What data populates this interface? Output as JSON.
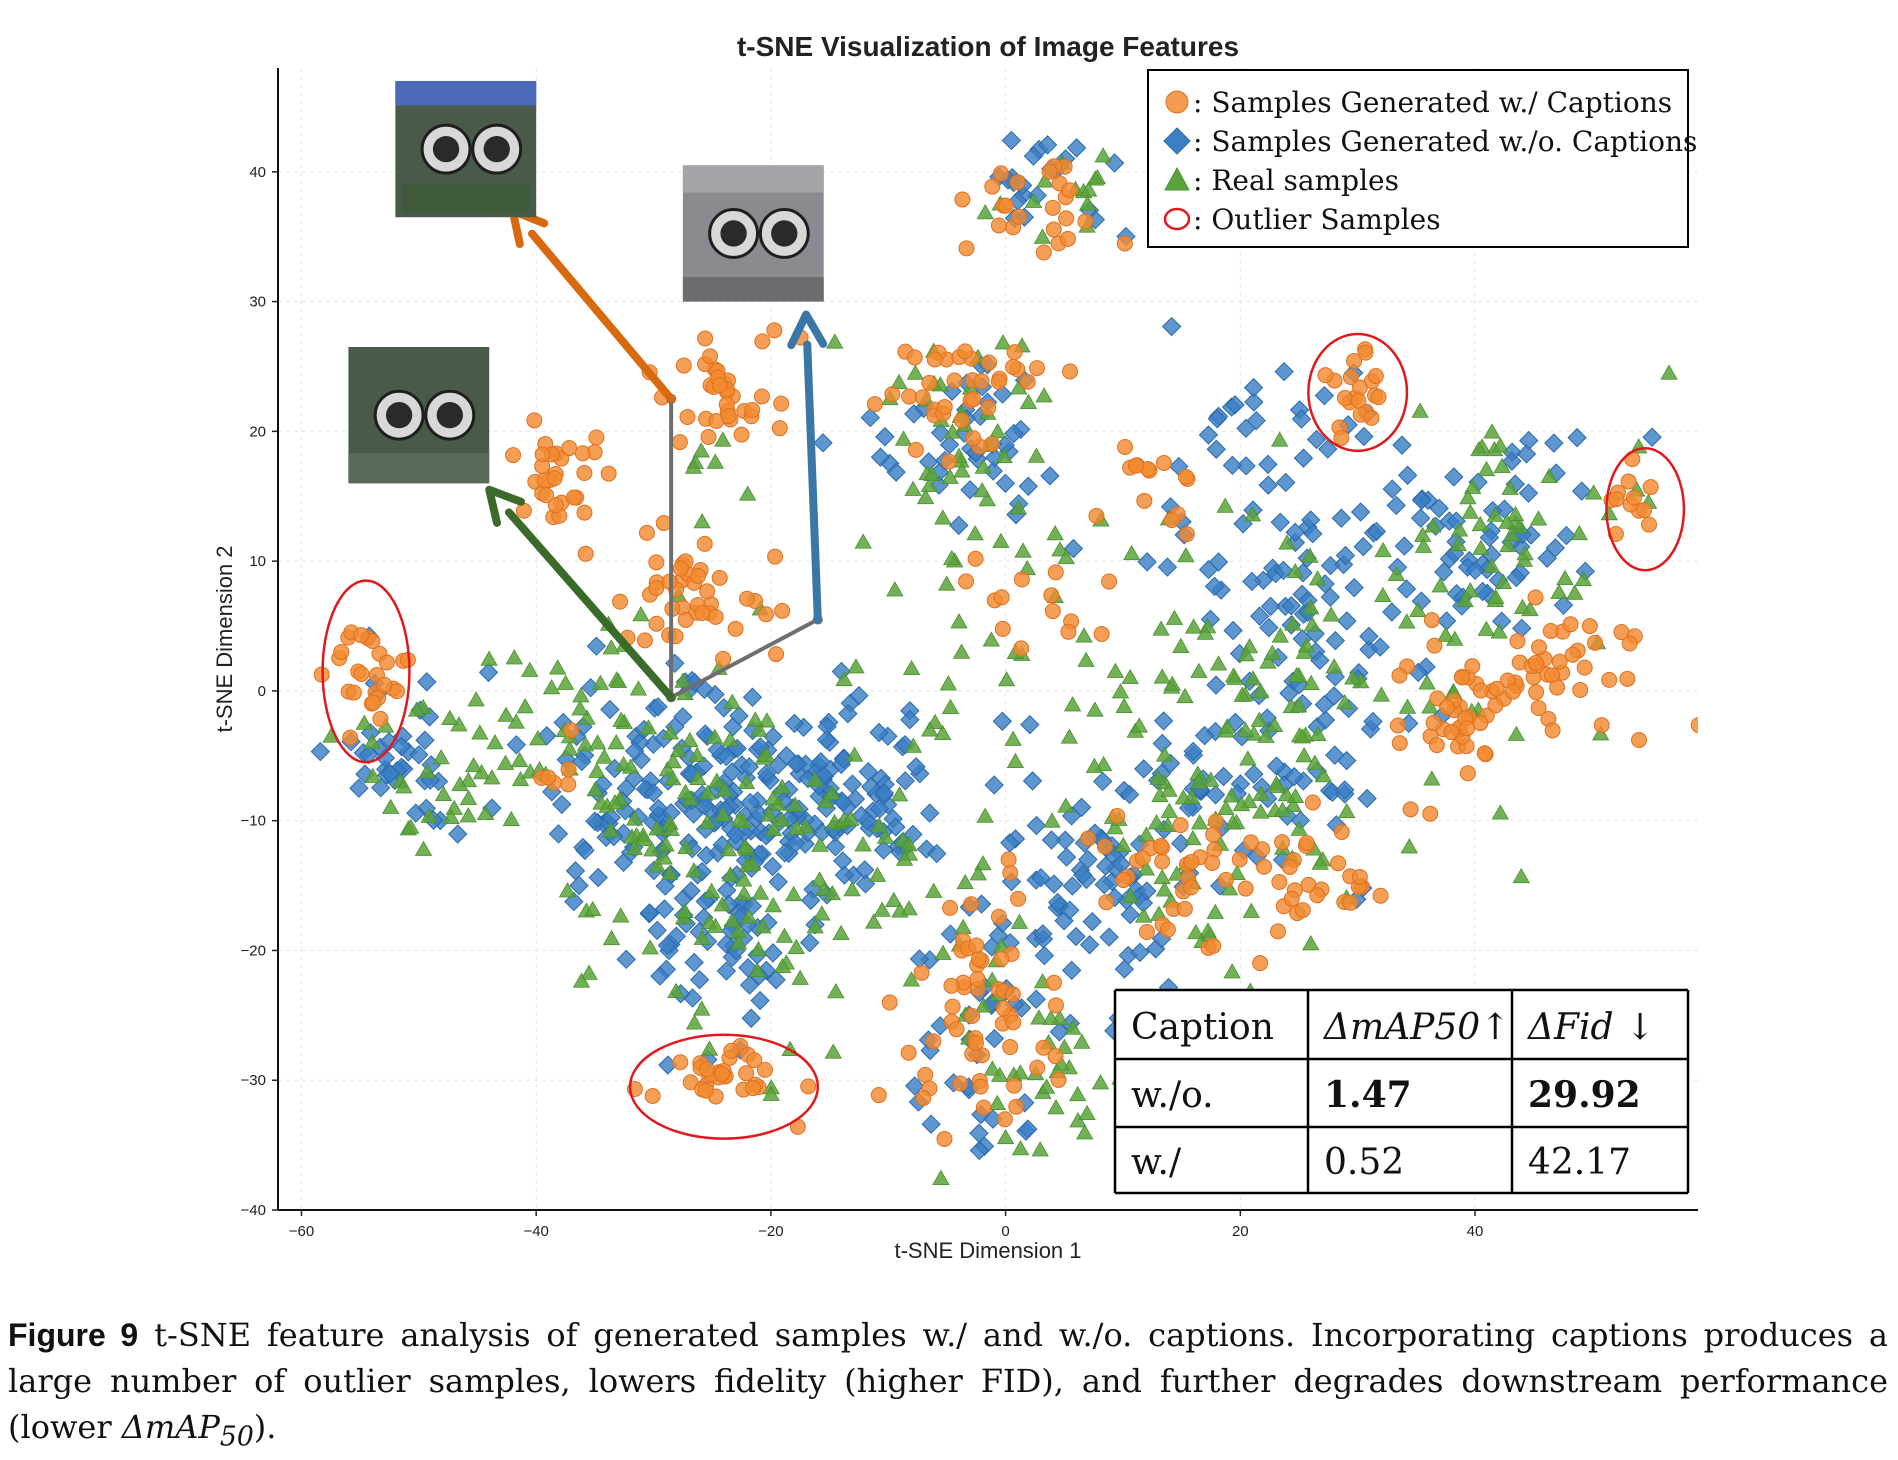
{
  "chart_data": {
    "type": "scatter",
    "title": "t-SNE Visualization of Image Features",
    "xlabel": "t-SNE Dimension 1",
    "ylabel": "t-SNE Dimension 2",
    "xlim": [
      -62,
      59
    ],
    "ylim": [
      -40,
      48
    ],
    "xticks": [
      -60,
      -40,
      -20,
      0,
      20,
      40
    ],
    "yticks": [
      -40,
      -30,
      -20,
      -10,
      0,
      10,
      20,
      30,
      40
    ],
    "grid": true,
    "legend_position": "top-right",
    "legend": [
      {
        "marker": "circle",
        "label": ": Samples Generated w./ Captions",
        "color": "#f28a30"
      },
      {
        "marker": "diamond",
        "label": ": Samples Generated w./o. Captions",
        "color": "#3a7fc4"
      },
      {
        "marker": "triangle",
        "label": ": Real samples",
        "color": "#5aa33a"
      },
      {
        "marker": "open-circle",
        "label": ": Outlier Samples",
        "color": "#e0191c"
      }
    ],
    "outliers": [
      {
        "cx": -54.5,
        "cy": 1.5,
        "rx": 3.7,
        "ry": 7
      },
      {
        "cx": 30,
        "cy": 23,
        "rx": 4.2,
        "ry": 4.5
      },
      {
        "cx": 54.5,
        "cy": 14,
        "rx": 3.3,
        "ry": 4.7
      },
      {
        "cx": -24,
        "cy": -30.5,
        "rx": 8,
        "ry": 4
      }
    ],
    "clusters": {
      "captions": [
        {
          "x": -54,
          "y": 2,
          "sx": 1.4,
          "sy": 2,
          "n": 26
        },
        {
          "x": 30,
          "y": 23,
          "sx": 1.5,
          "sy": 1.6,
          "n": 20
        },
        {
          "x": 53,
          "y": 15,
          "sx": 0.9,
          "sy": 1.7,
          "n": 12
        },
        {
          "x": -24,
          "y": -30,
          "sx": 2.7,
          "sy": 1.2,
          "n": 32
        },
        {
          "x": -38,
          "y": 16,
          "sx": 2,
          "sy": 2.2,
          "n": 30
        },
        {
          "x": -24,
          "y": 23,
          "sx": 2.7,
          "sy": 2.2,
          "n": 36
        },
        {
          "x": -26,
          "y": 7.5,
          "sx": 3.2,
          "sy": 2.7,
          "n": 42
        },
        {
          "x": -4,
          "y": 23,
          "sx": 4,
          "sy": 2.5,
          "n": 38
        },
        {
          "x": 3,
          "y": 37,
          "sx": 3.5,
          "sy": 2,
          "n": 24
        },
        {
          "x": 12,
          "y": 16,
          "sx": 2,
          "sy": 2,
          "n": 14
        },
        {
          "x": -2,
          "y": -25,
          "sx": 3.3,
          "sy": 5,
          "n": 58
        },
        {
          "x": 23,
          "y": -14,
          "sx": 4.5,
          "sy": 2.8,
          "n": 48
        },
        {
          "x": 39,
          "y": -1,
          "sx": 3.5,
          "sy": 3,
          "n": 46
        },
        {
          "x": 47,
          "y": 2,
          "sx": 3.5,
          "sy": 3,
          "n": 34
        },
        {
          "x": -38,
          "y": -6,
          "sx": 1.3,
          "sy": 1.4,
          "n": 6
        },
        {
          "x": 12,
          "y": -13,
          "sx": 2.5,
          "sy": 4,
          "n": 14
        },
        {
          "x": 4,
          "y": 6,
          "sx": 3,
          "sy": 3,
          "n": 14
        }
      ],
      "no_captions": [
        {
          "x": -52,
          "y": -4,
          "sx": 3,
          "sy": 3,
          "n": 36
        },
        {
          "x": -26,
          "y": -9,
          "sx": 7,
          "sy": 4.5,
          "n": 180
        },
        {
          "x": -13,
          "y": -8,
          "sx": 5.5,
          "sy": 3.5,
          "n": 90
        },
        {
          "x": -24,
          "y": -19,
          "sx": 3.5,
          "sy": 4,
          "n": 55
        },
        {
          "x": -3,
          "y": 19,
          "sx": 4.5,
          "sy": 3.5,
          "n": 44
        },
        {
          "x": 4,
          "y": 39,
          "sx": 4,
          "sy": 2,
          "n": 24
        },
        {
          "x": 21,
          "y": -7,
          "sx": 6,
          "sy": 3.5,
          "n": 60
        },
        {
          "x": 25,
          "y": 7,
          "sx": 6,
          "sy": 5,
          "n": 80
        },
        {
          "x": 41,
          "y": 11,
          "sx": 4.5,
          "sy": 4.5,
          "n": 60
        },
        {
          "x": 4,
          "y": -18,
          "sx": 7,
          "sy": 6,
          "n": 60
        },
        {
          "x": -2,
          "y": -28,
          "sx": 3.5,
          "sy": 4.5,
          "n": 30
        },
        {
          "x": 22,
          "y": 20,
          "sx": 4,
          "sy": 3,
          "n": 28
        },
        {
          "x": 8,
          "y": -12,
          "sx": 4,
          "sy": 4,
          "n": 24
        }
      ],
      "real": [
        {
          "x": -49,
          "y": -6,
          "sx": 4,
          "sy": 3,
          "n": 30
        },
        {
          "x": -30,
          "y": -6,
          "sx": 8,
          "sy": 6,
          "n": 110
        },
        {
          "x": -20,
          "y": -18,
          "sx": 5,
          "sy": 6,
          "n": 50
        },
        {
          "x": -3,
          "y": 15,
          "sx": 4.5,
          "sy": 6,
          "n": 60
        },
        {
          "x": 22,
          "y": 0,
          "sx": 10,
          "sy": 8,
          "n": 130
        },
        {
          "x": 2,
          "y": -28,
          "sx": 4,
          "sy": 5,
          "n": 40
        },
        {
          "x": 18,
          "y": -12,
          "sx": 6,
          "sy": 4,
          "n": 45
        },
        {
          "x": 44,
          "y": 12,
          "sx": 6,
          "sy": 5,
          "n": 50
        },
        {
          "x": 5,
          "y": 37,
          "sx": 3,
          "sy": 2,
          "n": 14
        },
        {
          "x": -10,
          "y": -10,
          "sx": 4,
          "sy": 5,
          "n": 35
        },
        {
          "x": -25,
          "y": 20,
          "sx": 5,
          "sy": 5,
          "n": 8
        }
      ]
    },
    "arrows": [
      {
        "from": [
          -28.5,
          22.5
        ],
        "to": [
          -42,
          37
        ],
        "color": "#d9690f"
      },
      {
        "from": [
          -28.5,
          -0.5
        ],
        "to": [
          -44,
          15.5
        ],
        "color": "#3a6b2a"
      },
      {
        "from": [
          -16,
          5.5
        ],
        "to": [
          -17,
          29
        ],
        "color": "#3a76a6"
      }
    ],
    "connector_path": [
      [
        -28.5,
        22.5
      ],
      [
        -28.5,
        -0.5
      ],
      [
        -16,
        5.5
      ]
    ],
    "thumbnails": [
      {
        "name": "thumb-orange",
        "x": -52,
        "y": 47,
        "w": 12,
        "h": 10.5
      },
      {
        "name": "thumb-blue",
        "x": -27.5,
        "y": 40.5,
        "w": 12,
        "h": 10.5
      },
      {
        "name": "thumb-green",
        "x": -56,
        "y": 26.5,
        "w": 12,
        "h": 10.5
      }
    ],
    "table": {
      "headers": [
        "Caption",
        "ΔmAP50↑",
        "ΔFid ↓"
      ],
      "rows": [
        [
          "w./o.",
          "1.47",
          "29.92"
        ],
        [
          "w./",
          "0.52",
          "42.17"
        ]
      ],
      "bold_row": 0
    }
  },
  "caption": {
    "label": "Figure 9",
    "text": "t-SNE feature analysis of generated samples w./ and w./o. captions. Incorporating captions produces a large number of outlier samples, lowers fidelity (higher FID), and further degrades downstream performance (lower ",
    "math": "ΔmAP",
    "math_sub": "50",
    "end": ")."
  }
}
